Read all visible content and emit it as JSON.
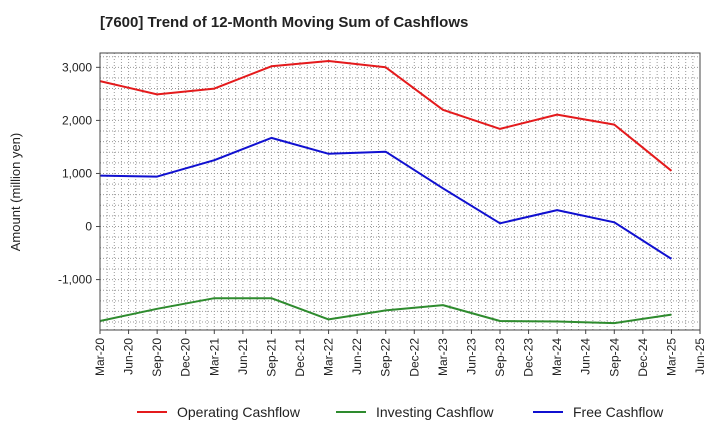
{
  "chart_data": {
    "type": "line",
    "title": "[7600]  Trend of 12-Month Moving Sum of Cashflows",
    "xlabel": "",
    "ylabel": "Amount (million yen)",
    "x_ticks": [
      "Mar-20",
      "Jun-20",
      "Sep-20",
      "Dec-20",
      "Mar-21",
      "Jun-21",
      "Sep-21",
      "Dec-21",
      "Mar-22",
      "Jun-22",
      "Sep-22",
      "Dec-22",
      "Mar-23",
      "Jun-23",
      "Sep-23",
      "Dec-23",
      "Mar-24",
      "Jun-24",
      "Sep-24",
      "Dec-24",
      "Mar-25",
      "Jun-25"
    ],
    "y_ticks": [
      3000,
      2000,
      1000,
      0,
      -1000
    ],
    "y_tick_labels": [
      "3,000",
      "2,000",
      "1,000",
      "0",
      "-1,000"
    ],
    "ylim": [
      -1950,
      3270
    ],
    "grid": true,
    "legend_position": "bottom",
    "x": [
      "Mar-20",
      "Sep-20",
      "Mar-21",
      "Sep-21",
      "Mar-22",
      "Sep-22",
      "Mar-23",
      "Sep-23",
      "Mar-24",
      "Sep-24",
      "Mar-25"
    ],
    "series": [
      {
        "name": "Operating Cashflow",
        "color": "#e41a1c",
        "values": [
          2740,
          2490,
          2600,
          3020,
          3120,
          3000,
          2200,
          1840,
          2110,
          1920,
          1050
        ]
      },
      {
        "name": "Investing Cashflow",
        "color": "#2e8b2e",
        "values": [
          -1780,
          -1550,
          -1350,
          -1350,
          -1750,
          -1580,
          -1480,
          -1780,
          -1790,
          -1820,
          -1660
        ]
      },
      {
        "name": "Free Cashflow",
        "color": "#1010d0",
        "values": [
          960,
          940,
          1250,
          1670,
          1370,
          1410,
          720,
          60,
          310,
          80,
          -610
        ]
      }
    ]
  }
}
